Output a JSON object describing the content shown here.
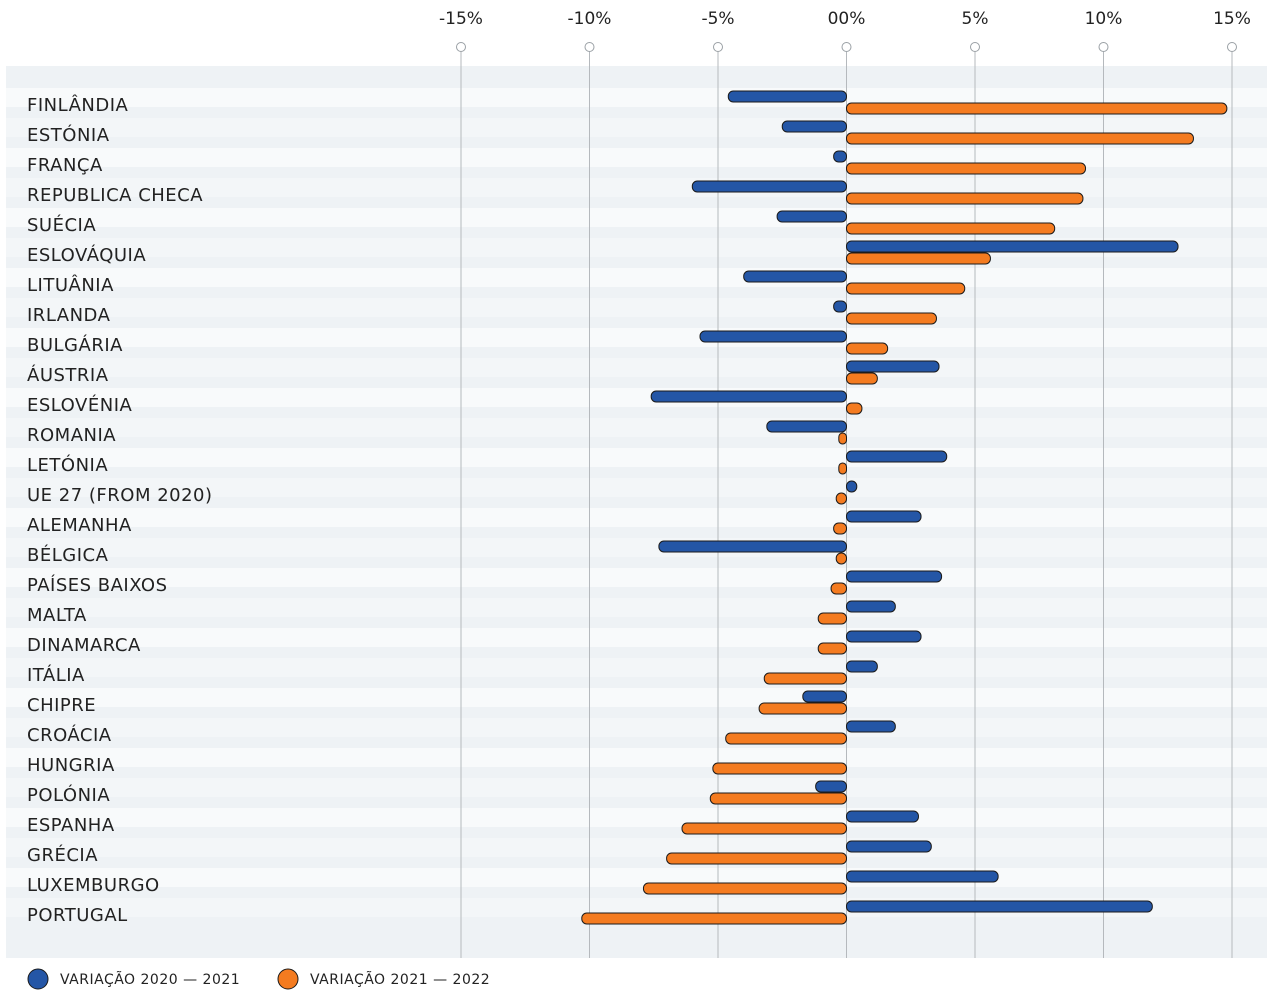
{
  "chart_data": {
    "type": "bar",
    "orientation": "horizontal",
    "categories": [
      "FINLÂNDIA",
      "ESTÓNIA",
      "FRANÇA",
      "REPUBLICA CHECA",
      "SUÉCIA",
      "ESLOVÁQUIA",
      "LITUÂNIA",
      "IRLANDA",
      "BULGÁRIA",
      "ÁUSTRIA",
      "ESLOVÉNIA",
      "ROMANIA",
      "LETÓNIA",
      "UE 27 (FROM 2020)",
      "ALEMANHA",
      "BÉLGICA",
      "PAÍSES BAIXOS",
      "MALTA",
      "DINAMARCA",
      "ITÁLIA",
      "CHIPRE",
      "CROÁCIA",
      "HUNGRIA",
      "POLÓNIA",
      "ESPANHA",
      "GRÉCIA",
      "LUXEMBURGO",
      "PORTUGAL"
    ],
    "series": [
      {
        "name": "VARIAÇÃO 2020 — 2021",
        "color": "#2456a6",
        "values": [
          -4.6,
          -2.5,
          -0.5,
          -6.0,
          -2.7,
          12.9,
          -4.0,
          -0.5,
          -5.7,
          3.6,
          -7.6,
          -3.1,
          3.9,
          0.4,
          2.9,
          -7.3,
          3.7,
          1.9,
          2.9,
          1.2,
          -1.7,
          1.9,
          0,
          -1.2,
          2.8,
          3.3,
          5.9,
          11.9
        ]
      },
      {
        "name": "VARIAÇÃO 2021 — 2022",
        "color": "#f47b20",
        "values": [
          14.8,
          13.5,
          9.3,
          9.2,
          8.1,
          5.6,
          4.6,
          3.5,
          1.6,
          1.2,
          0.6,
          -0.3,
          -0.3,
          -0.4,
          -0.5,
          -0.4,
          -0.6,
          -1.1,
          -1.1,
          -3.2,
          -3.4,
          -4.7,
          -5.2,
          -5.3,
          -6.4,
          -7.0,
          -7.9,
          -10.3
        ]
      }
    ],
    "xlim": [
      -15,
      15
    ],
    "xticks": [
      {
        "value": -15,
        "label": "-15%"
      },
      {
        "value": -10,
        "label": "-10%"
      },
      {
        "value": -5,
        "label": "-5%"
      },
      {
        "value": 0,
        "label": "00%"
      },
      {
        "value": 5,
        "label": "5%"
      },
      {
        "value": 10,
        "label": "10%"
      },
      {
        "value": 15,
        "label": "15%"
      }
    ],
    "grid": true,
    "legend": "bottom-left"
  }
}
